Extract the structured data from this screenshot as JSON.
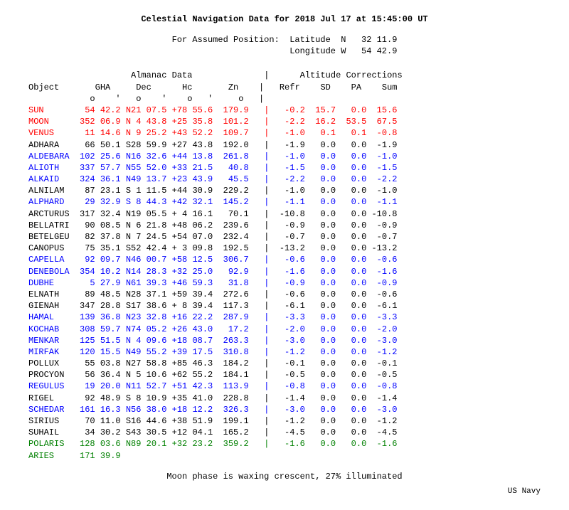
{
  "title": "Celestial Navigation Data for 2018 Jul 17 at 15:45:00 UT",
  "assumed_position": {
    "label": "For Assumed Position:",
    "latitude_label": "Latitude",
    "latitude_hemi": "N",
    "latitude_val": "32 11.9",
    "longitude_label": "Longitude",
    "longitude_hemi": "W",
    "longitude_val": "54 42.9"
  },
  "columns": {
    "object": "Object",
    "almanac_header": "Almanac Data",
    "gha": "GHA",
    "dec": "Dec",
    "hc": "Hc",
    "zn": "Zn",
    "corr_header": "Altitude Corrections",
    "refr": "Refr",
    "sd": "SD",
    "pa": "PA",
    "sum": "Sum",
    "deg": "o",
    "min": "'",
    "sep": "|"
  },
  "colors": {
    "black": "#000000",
    "red": "#ff0000",
    "blue": "#0000ff",
    "green": "#008000"
  },
  "rows": [
    {
      "name": "SUN",
      "gha": "54 42.2",
      "dec": "N21 07.5",
      "hc": "+78 55.6",
      "zn": "179.9",
      "refr": "-0.2",
      "sd": "15.7",
      "pa": "0.0",
      "sum": "15.6",
      "color": "red"
    },
    {
      "name": "MOON",
      "gha": "352 06.9",
      "dec": "N 4 43.8",
      "hc": "+25 35.8",
      "zn": "101.2",
      "refr": "-2.2",
      "sd": "16.2",
      "pa": "53.5",
      "sum": "67.5",
      "color": "red"
    },
    {
      "name": "VENUS",
      "gha": "11 14.6",
      "dec": "N 9 25.2",
      "hc": "+43 52.2",
      "zn": "109.7",
      "refr": "-1.0",
      "sd": "0.1",
      "pa": "0.1",
      "sum": "-0.8",
      "color": "red"
    },
    {
      "name": "ADHARA",
      "gha": "66 50.1",
      "dec": "S28 59.9",
      "hc": "+27 43.8",
      "zn": "192.0",
      "refr": "-1.9",
      "sd": "0.0",
      "pa": "0.0",
      "sum": "-1.9",
      "color": "black"
    },
    {
      "name": "ALDEBARA",
      "gha": "102 25.6",
      "dec": "N16 32.6",
      "hc": "+44 13.8",
      "zn": "261.8",
      "refr": "-1.0",
      "sd": "0.0",
      "pa": "0.0",
      "sum": "-1.0",
      "color": "blue"
    },
    {
      "name": "ALIOTH",
      "gha": "337 57.7",
      "dec": "N55 52.0",
      "hc": "+33 21.5",
      "zn": "40.8",
      "refr": "-1.5",
      "sd": "0.0",
      "pa": "0.0",
      "sum": "-1.5",
      "color": "blue"
    },
    {
      "name": "ALKAID",
      "gha": "324 36.1",
      "dec": "N49 13.7",
      "hc": "+23 43.9",
      "zn": "45.5",
      "refr": "-2.2",
      "sd": "0.0",
      "pa": "0.0",
      "sum": "-2.2",
      "color": "blue"
    },
    {
      "name": "ALNILAM",
      "gha": "87 23.1",
      "dec": "S 1 11.5",
      "hc": "+44 30.9",
      "zn": "229.2",
      "refr": "-1.0",
      "sd": "0.0",
      "pa": "0.0",
      "sum": "-1.0",
      "color": "black"
    },
    {
      "name": "ALPHARD",
      "gha": "29 32.9",
      "dec": "S 8 44.3",
      "hc": "+42 32.1",
      "zn": "145.2",
      "refr": "-1.1",
      "sd": "0.0",
      "pa": "0.0",
      "sum": "-1.1",
      "color": "blue"
    },
    {
      "name": "ARCTURUS",
      "gha": "317 32.4",
      "dec": "N19 05.5",
      "hc": "+ 4 16.1",
      "zn": "70.1",
      "refr": "-10.8",
      "sd": "0.0",
      "pa": "0.0",
      "sum": "-10.8",
      "color": "black"
    },
    {
      "name": "BELLATRI",
      "gha": "90 08.5",
      "dec": "N 6 21.8",
      "hc": "+48 06.2",
      "zn": "239.6",
      "refr": "-0.9",
      "sd": "0.0",
      "pa": "0.0",
      "sum": "-0.9",
      "color": "black"
    },
    {
      "name": "BETELGEU",
      "gha": "82 37.8",
      "dec": "N 7 24.5",
      "hc": "+54 07.0",
      "zn": "232.4",
      "refr": "-0.7",
      "sd": "0.0",
      "pa": "0.0",
      "sum": "-0.7",
      "color": "black"
    },
    {
      "name": "CANOPUS",
      "gha": "75 35.1",
      "dec": "S52 42.4",
      "hc": "+ 3 09.8",
      "zn": "192.5",
      "refr": "-13.2",
      "sd": "0.0",
      "pa": "0.0",
      "sum": "-13.2",
      "color": "black"
    },
    {
      "name": "CAPELLA",
      "gha": "92 09.7",
      "dec": "N46 00.7",
      "hc": "+58 12.5",
      "zn": "306.7",
      "refr": "-0.6",
      "sd": "0.0",
      "pa": "0.0",
      "sum": "-0.6",
      "color": "blue"
    },
    {
      "name": "DENEBOLA",
      "gha": "354 10.2",
      "dec": "N14 28.3",
      "hc": "+32 25.0",
      "zn": "92.9",
      "refr": "-1.6",
      "sd": "0.0",
      "pa": "0.0",
      "sum": "-1.6",
      "color": "blue"
    },
    {
      "name": "DUBHE",
      "gha": "5 27.9",
      "dec": "N61 39.3",
      "hc": "+46 59.3",
      "zn": "31.8",
      "refr": "-0.9",
      "sd": "0.0",
      "pa": "0.0",
      "sum": "-0.9",
      "color": "blue"
    },
    {
      "name": "ELNATH",
      "gha": "89 48.5",
      "dec": "N28 37.1",
      "hc": "+59 39.4",
      "zn": "272.6",
      "refr": "-0.6",
      "sd": "0.0",
      "pa": "0.0",
      "sum": "-0.6",
      "color": "black"
    },
    {
      "name": "GIENAH",
      "gha": "347 28.8",
      "dec": "S17 38.6",
      "hc": "+ 8 39.4",
      "zn": "117.3",
      "refr": "-6.1",
      "sd": "0.0",
      "pa": "0.0",
      "sum": "-6.1",
      "color": "black"
    },
    {
      "name": "HAMAL",
      "gha": "139 36.8",
      "dec": "N23 32.8",
      "hc": "+16 22.2",
      "zn": "287.9",
      "refr": "-3.3",
      "sd": "0.0",
      "pa": "0.0",
      "sum": "-3.3",
      "color": "blue"
    },
    {
      "name": "KOCHAB",
      "gha": "308 59.7",
      "dec": "N74 05.2",
      "hc": "+26 43.0",
      "zn": "17.2",
      "refr": "-2.0",
      "sd": "0.0",
      "pa": "0.0",
      "sum": "-2.0",
      "color": "blue"
    },
    {
      "name": "MENKAR",
      "gha": "125 51.5",
      "dec": "N 4 09.6",
      "hc": "+18 08.7",
      "zn": "263.3",
      "refr": "-3.0",
      "sd": "0.0",
      "pa": "0.0",
      "sum": "-3.0",
      "color": "blue"
    },
    {
      "name": "MIRFAK",
      "gha": "120 15.5",
      "dec": "N49 55.2",
      "hc": "+39 17.5",
      "zn": "310.8",
      "refr": "-1.2",
      "sd": "0.0",
      "pa": "0.0",
      "sum": "-1.2",
      "color": "blue"
    },
    {
      "name": "POLLUX",
      "gha": "55 03.8",
      "dec": "N27 58.8",
      "hc": "+85 46.3",
      "zn": "184.2",
      "refr": "-0.1",
      "sd": "0.0",
      "pa": "0.0",
      "sum": "-0.1",
      "color": "black"
    },
    {
      "name": "PROCYON",
      "gha": "56 36.4",
      "dec": "N 5 10.6",
      "hc": "+62 55.2",
      "zn": "184.1",
      "refr": "-0.5",
      "sd": "0.0",
      "pa": "0.0",
      "sum": "-0.5",
      "color": "black"
    },
    {
      "name": "REGULUS",
      "gha": "19 20.0",
      "dec": "N11 52.7",
      "hc": "+51 42.3",
      "zn": "113.9",
      "refr": "-0.8",
      "sd": "0.0",
      "pa": "0.0",
      "sum": "-0.8",
      "color": "blue"
    },
    {
      "name": "RIGEL",
      "gha": "92 48.9",
      "dec": "S 8 10.9",
      "hc": "+35 41.0",
      "zn": "228.8",
      "refr": "-1.4",
      "sd": "0.0",
      "pa": "0.0",
      "sum": "-1.4",
      "color": "black"
    },
    {
      "name": "SCHEDAR",
      "gha": "161 16.3",
      "dec": "N56 38.0",
      "hc": "+18 12.2",
      "zn": "326.3",
      "refr": "-3.0",
      "sd": "0.0",
      "pa": "0.0",
      "sum": "-3.0",
      "color": "blue"
    },
    {
      "name": "SIRIUS",
      "gha": "70 11.0",
      "dec": "S16 44.6",
      "hc": "+38 51.9",
      "zn": "199.1",
      "refr": "-1.2",
      "sd": "0.0",
      "pa": "0.0",
      "sum": "-1.2",
      "color": "black"
    },
    {
      "name": "SUHAIL",
      "gha": "34 30.2",
      "dec": "S43 30.5",
      "hc": "+12 04.1",
      "zn": "165.2",
      "refr": "-4.5",
      "sd": "0.0",
      "pa": "0.0",
      "sum": "-4.5",
      "color": "black"
    },
    {
      "name": "POLARIS",
      "gha": "128 03.6",
      "dec": "N89 20.1",
      "hc": "+32 23.2",
      "zn": "359.2",
      "refr": "-1.6",
      "sd": "0.0",
      "pa": "0.0",
      "sum": "-1.6",
      "color": "green"
    },
    {
      "name": "ARIES",
      "gha": "171 39.9",
      "dec": "",
      "hc": "",
      "zn": "",
      "refr": "",
      "sd": "",
      "pa": "",
      "sum": "",
      "color": "green"
    }
  ],
  "footnote": "Moon phase is waxing crescent,  27% illuminated",
  "credit": "US Navy"
}
